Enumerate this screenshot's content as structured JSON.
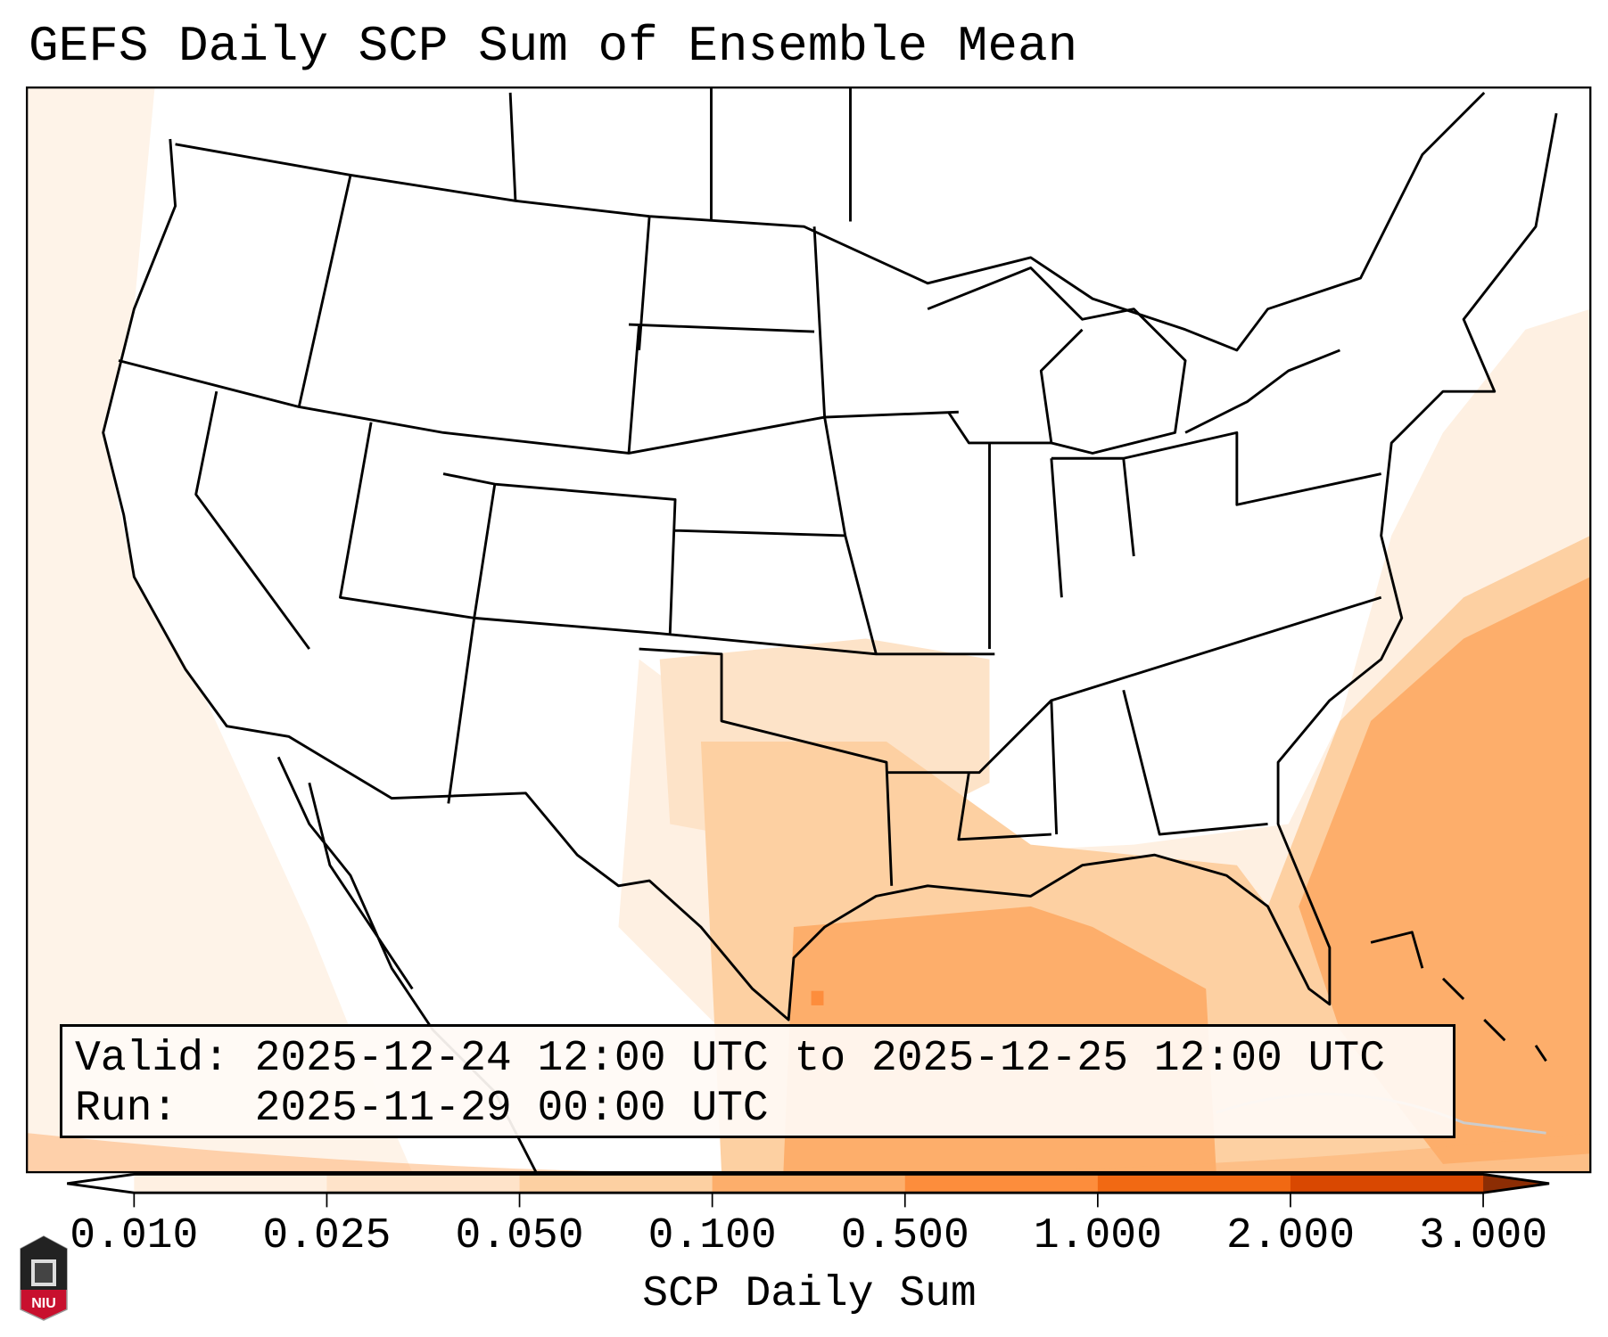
{
  "title": "GEFS Daily SCP Sum of Ensemble Mean",
  "info": {
    "valid_line": "Valid: 2025-12-24 12:00 UTC to 2025-12-25 12:00 UTC",
    "run_line": "Run:   2025-11-29 00:00 UTC"
  },
  "colorbar": {
    "label": "SCP Daily Sum",
    "ticks": [
      "0.010",
      "0.025",
      "0.050",
      "0.100",
      "0.500",
      "1.000",
      "2.000",
      "3.000"
    ],
    "colors": [
      "#fef0e2",
      "#fee3c9",
      "#fdd0a2",
      "#fdae6b",
      "#fd8d3c",
      "#f16913",
      "#d94801",
      "#8c2d04"
    ],
    "under_color": "#ffffff",
    "extend": "both"
  },
  "logo": {
    "text": "NIU"
  },
  "colors": {
    "light": "#fef2e6",
    "mid": "#fdd0a2",
    "orange": "#fdae6b",
    "dark": "#fd8d3c"
  }
}
